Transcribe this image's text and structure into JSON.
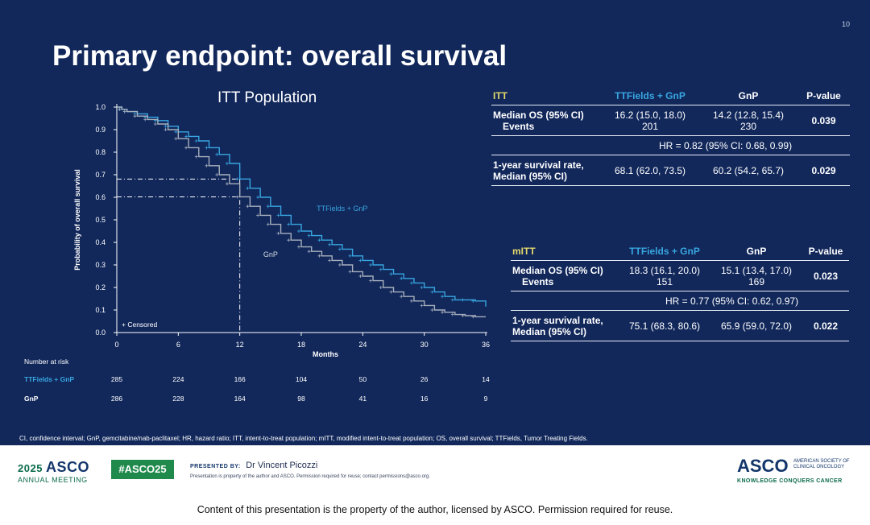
{
  "slide": {
    "number": "10",
    "title": "Primary endpoint: overall survival",
    "plot_title": "ITT Population",
    "footnote": "CI, confidence interval; GnP, gemcitabine/nab-paclitaxel; HR, hazard ratio; ITT, intent-to-treat population; mITT, modified intent-to-treat population; OS, overall survival; TTFields, Tumor Treating Fields."
  },
  "chart_data": {
    "type": "line",
    "title": "ITT Population",
    "xlabel": "Months",
    "ylabel": "Probability of overall survival",
    "xlim": [
      0,
      36
    ],
    "ylim": [
      0,
      1.0
    ],
    "x_ticks": [
      0,
      6,
      12,
      18,
      24,
      30,
      36
    ],
    "y_ticks": [
      0.0,
      0.1,
      0.2,
      0.3,
      0.4,
      0.5,
      0.6,
      0.7,
      0.8,
      0.9,
      1.0
    ],
    "grid": false,
    "censored_label": "+ Censored",
    "series": [
      {
        "name": "TTFields + GnP",
        "color": "#38a6e0",
        "x": [
          0,
          0.5,
          1,
          2,
          3,
          4,
          5,
          6,
          7,
          8,
          9,
          10,
          11,
          12,
          13,
          14,
          15,
          16,
          17,
          18,
          19,
          20,
          21,
          22,
          23,
          24,
          25,
          26,
          27,
          28,
          29,
          30,
          31,
          32,
          33,
          34,
          35,
          36
        ],
        "y": [
          1.0,
          0.99,
          0.98,
          0.97,
          0.955,
          0.94,
          0.915,
          0.89,
          0.87,
          0.85,
          0.82,
          0.79,
          0.75,
          0.681,
          0.64,
          0.6,
          0.56,
          0.52,
          0.48,
          0.45,
          0.43,
          0.41,
          0.39,
          0.37,
          0.34,
          0.32,
          0.3,
          0.28,
          0.26,
          0.24,
          0.22,
          0.2,
          0.18,
          0.16,
          0.145,
          0.145,
          0.14,
          0.115
        ]
      },
      {
        "name": "GnP",
        "color": "#a8b0bc",
        "x": [
          0,
          0.5,
          1,
          2,
          3,
          4,
          5,
          6,
          7,
          8,
          9,
          10,
          11,
          12,
          13,
          14,
          15,
          16,
          17,
          18,
          19,
          20,
          21,
          22,
          23,
          24,
          25,
          26,
          27,
          28,
          29,
          30,
          31,
          32,
          33,
          34,
          35,
          36
        ],
        "y": [
          1.0,
          0.99,
          0.98,
          0.96,
          0.945,
          0.925,
          0.9,
          0.86,
          0.82,
          0.78,
          0.74,
          0.7,
          0.66,
          0.602,
          0.56,
          0.52,
          0.48,
          0.44,
          0.41,
          0.38,
          0.36,
          0.34,
          0.32,
          0.3,
          0.27,
          0.25,
          0.23,
          0.2,
          0.18,
          0.16,
          0.14,
          0.12,
          0.1,
          0.09,
          0.08,
          0.075,
          0.07,
          0.07
        ]
      }
    ],
    "series_labels": [
      "TTFields + GnP",
      "GnP"
    ],
    "reference": {
      "x": 12,
      "y_values": [
        0.681,
        0.602
      ]
    },
    "risk_table": {
      "header": "Number at risk",
      "rows": [
        {
          "name": "TTFields + GnP",
          "values": [
            "285",
            "224",
            "166",
            "104",
            "50",
            "26",
            "14"
          ]
        },
        {
          "name": "GnP",
          "values": [
            "286",
            "228",
            "164",
            "98",
            "41",
            "16",
            "9"
          ]
        }
      ]
    }
  },
  "itt_table": {
    "headers": [
      "ITT",
      "TTFields + GnP",
      "GnP",
      "P-value"
    ],
    "row1": {
      "label": "Median OS (95% CI)",
      "sublabel": "Events",
      "a": "16.2 (15.0, 18.0)",
      "a2": "201",
      "b": "14.2 (12.8, 15.4)",
      "b2": "230",
      "p": "0.039"
    },
    "hr": "HR = 0.82 (95% CI: 0.68, 0.99)",
    "row2": {
      "label": "1-year survival rate,",
      "sublabel": "Median (95% CI)",
      "a": "68.1 (62.0, 73.5)",
      "b": "60.2 (54.2, 65.7)",
      "p": "0.029"
    }
  },
  "mitt_table": {
    "headers": [
      "mITT",
      "TTFields + GnP",
      "GnP",
      "P-value"
    ],
    "row1": {
      "label": "Median OS (95% CI)",
      "sublabel": "Events",
      "a": "18.3 (16.1, 20.0)",
      "a2": "151",
      "b": "15.1 (13.4, 17.0)",
      "b2": "169",
      "p": "0.023"
    },
    "hr": "HR = 0.77 (95% CI: 0.62, 0.97)",
    "row2": {
      "label": "1-year survival rate,",
      "sublabel": "Median (95% CI)",
      "a": "75.1 (68.3, 80.6)",
      "b": "65.9 (59.0, 72.0)",
      "p": "0.022"
    }
  },
  "branding": {
    "year": "2025",
    "asco": "ASCO",
    "meeting": "ANNUAL MEETING",
    "hashtag": "#ASCO25",
    "presented_by": "PRESENTED BY:",
    "presenter": "Dr Vincent Picozzi",
    "rights": "Presentation is property of the author and ASCO. Permission required for reuse; contact permissions@asco.org.",
    "org_line1": "AMERICAN SOCIETY OF",
    "org_line2": "CLINICAL ONCOLOGY",
    "tagline": "KNOWLEDGE CONQUERS CANCER"
  },
  "bottom_notice": "Content of this presentation is the property of the author, licensed by ASCO. Permission required for reuse."
}
